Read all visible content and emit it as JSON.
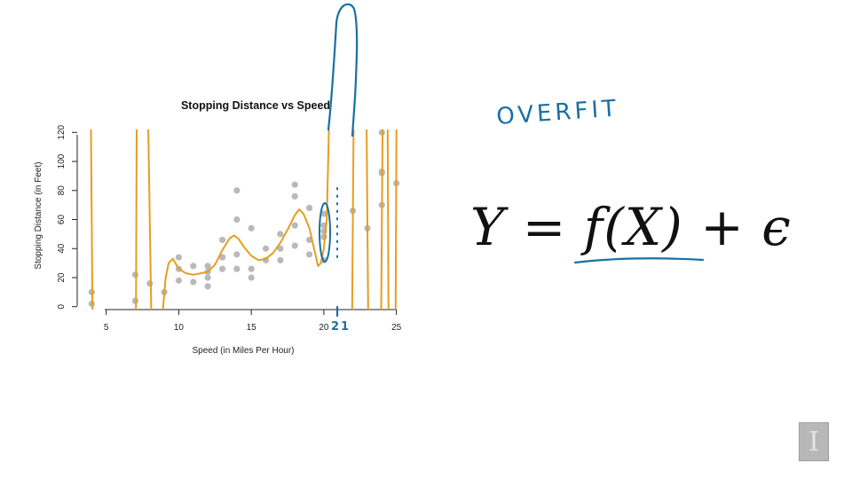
{
  "chart_data": {
    "type": "scatter",
    "title": "Stopping Distance vs Speed",
    "xlabel": "Speed (in Miles Per Hour)",
    "ylabel": "Stopping Distance (in Feet)",
    "xlim": [
      3,
      26
    ],
    "ylim": [
      -2,
      122
    ],
    "x_ticks": [
      5,
      10,
      15,
      20,
      25
    ],
    "y_ticks": [
      0,
      20,
      40,
      60,
      80,
      100,
      120
    ],
    "grid": false,
    "colors": {
      "points": "#b9b9b9",
      "fit": "#e69d22",
      "ink": "#1a6fa5"
    },
    "points": [
      {
        "x": 4,
        "y": 2
      },
      {
        "x": 4,
        "y": 10
      },
      {
        "x": 7,
        "y": 4
      },
      {
        "x": 7,
        "y": 22
      },
      {
        "x": 8,
        "y": 16
      },
      {
        "x": 9,
        "y": 10
      },
      {
        "x": 10,
        "y": 18
      },
      {
        "x": 10,
        "y": 26
      },
      {
        "x": 10,
        "y": 34
      },
      {
        "x": 11,
        "y": 17
      },
      {
        "x": 11,
        "y": 28
      },
      {
        "x": 12,
        "y": 14
      },
      {
        "x": 12,
        "y": 20
      },
      {
        "x": 12,
        "y": 24
      },
      {
        "x": 12,
        "y": 28
      },
      {
        "x": 13,
        "y": 26
      },
      {
        "x": 13,
        "y": 34
      },
      {
        "x": 13,
        "y": 34
      },
      {
        "x": 13,
        "y": 46
      },
      {
        "x": 14,
        "y": 26
      },
      {
        "x": 14,
        "y": 36
      },
      {
        "x": 14,
        "y": 60
      },
      {
        "x": 14,
        "y": 80
      },
      {
        "x": 15,
        "y": 20
      },
      {
        "x": 15,
        "y": 26
      },
      {
        "x": 15,
        "y": 54
      },
      {
        "x": 16,
        "y": 32
      },
      {
        "x": 16,
        "y": 40
      },
      {
        "x": 17,
        "y": 32
      },
      {
        "x": 17,
        "y": 40
      },
      {
        "x": 17,
        "y": 50
      },
      {
        "x": 18,
        "y": 42
      },
      {
        "x": 18,
        "y": 56
      },
      {
        "x": 18,
        "y": 76
      },
      {
        "x": 18,
        "y": 84
      },
      {
        "x": 19,
        "y": 36
      },
      {
        "x": 19,
        "y": 46
      },
      {
        "x": 19,
        "y": 68
      },
      {
        "x": 20,
        "y": 32
      },
      {
        "x": 20,
        "y": 48
      },
      {
        "x": 20,
        "y": 52
      },
      {
        "x": 20,
        "y": 56
      },
      {
        "x": 20,
        "y": 64
      },
      {
        "x": 22,
        "y": 66
      },
      {
        "x": 23,
        "y": 54
      },
      {
        "x": 24,
        "y": 70
      },
      {
        "x": 24,
        "y": 92
      },
      {
        "x": 24,
        "y": 93
      },
      {
        "x": 24,
        "y": 120
      },
      {
        "x": 25,
        "y": 85
      }
    ],
    "fit_curve": {
      "segments": [
        [
          [
            3.95,
            122
          ],
          [
            4.05,
            -2
          ]
        ],
        [
          [
            7.05,
            -2
          ],
          [
            7.1,
            122
          ]
        ],
        [
          [
            7.9,
            122
          ],
          [
            8.1,
            -2
          ]
        ],
        [
          [
            8.9,
            -2
          ],
          [
            9.1,
            20
          ],
          [
            9.3,
            30
          ],
          [
            9.6,
            33
          ],
          [
            10,
            26
          ],
          [
            10.5,
            23
          ],
          [
            11,
            22
          ],
          [
            11.5,
            23
          ],
          [
            12,
            24
          ],
          [
            12.5,
            29
          ],
          [
            13,
            39
          ],
          [
            13.5,
            47
          ],
          [
            13.8,
            49
          ],
          [
            14.1,
            47
          ],
          [
            14.5,
            41
          ],
          [
            15,
            35
          ],
          [
            15.5,
            32
          ],
          [
            16,
            33
          ],
          [
            16.5,
            37
          ],
          [
            17,
            44
          ],
          [
            17.5,
            53
          ],
          [
            18,
            63
          ],
          [
            18.3,
            67
          ],
          [
            18.6,
            64
          ],
          [
            19,
            54
          ],
          [
            19.3,
            41
          ],
          [
            19.6,
            28
          ],
          [
            19.8,
            30
          ],
          [
            20,
            40
          ],
          [
            20.2,
            60
          ],
          [
            20.35,
            122
          ]
        ],
        [
          [
            21.95,
            -2
          ],
          [
            22.05,
            122
          ]
        ],
        [
          [
            22.95,
            122
          ],
          [
            23.05,
            -2
          ]
        ],
        [
          [
            23.95,
            -2
          ],
          [
            24.05,
            122
          ]
        ],
        [
          [
            24.4,
            122
          ],
          [
            24.45,
            -2
          ]
        ],
        [
          [
            24.95,
            -2
          ],
          [
            25,
            122
          ]
        ]
      ]
    },
    "annotations": {
      "overfit": "OVERFIT",
      "axis_mark": "21"
    }
  },
  "equation": "Y = f(X) + ϵ",
  "logo_letter": "I"
}
